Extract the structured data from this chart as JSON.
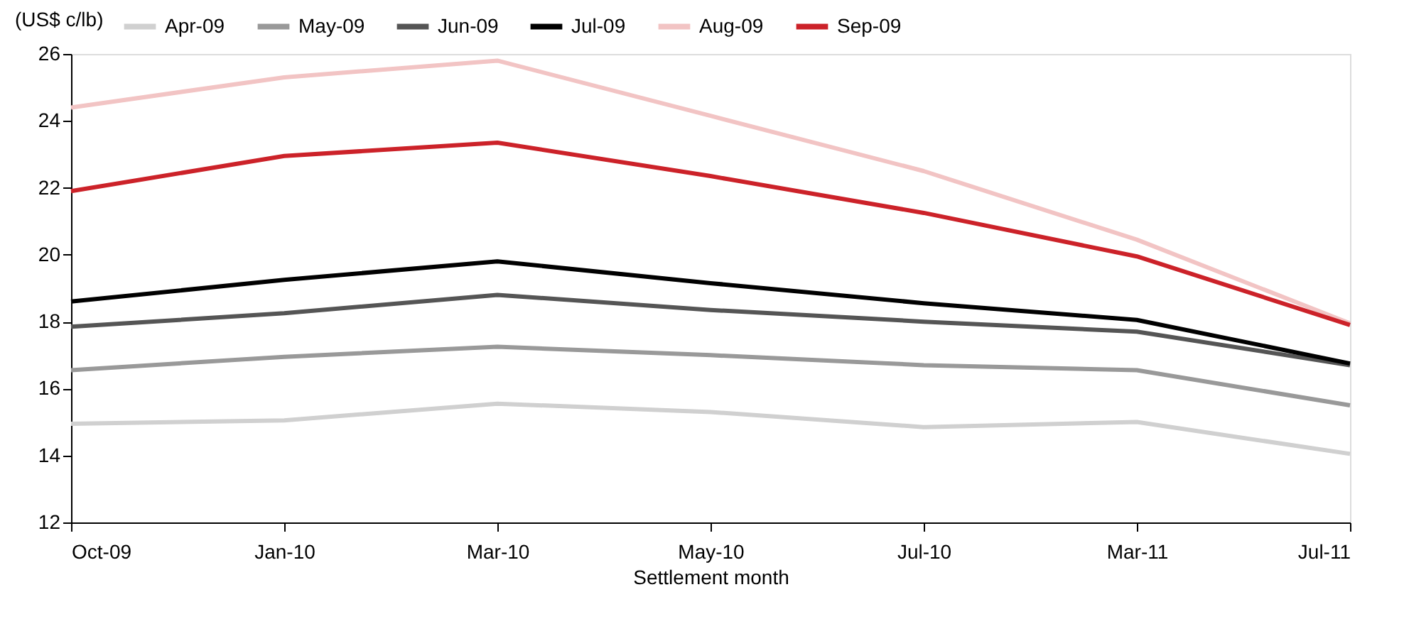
{
  "chart_data": {
    "type": "line",
    "xlabel": "Settlement month",
    "ylabel": "(US$ c/lb)",
    "categories": [
      "Oct-09",
      "Jan-10",
      "Mar-10",
      "May-10",
      "Jul-10",
      "Mar-11",
      "Jul-11"
    ],
    "series": [
      {
        "name": "Apr-09",
        "color": "#d0d0d0",
        "values": [
          14.95,
          15.05,
          15.55,
          15.3,
          14.85,
          15.0,
          14.05
        ]
      },
      {
        "name": "May-09",
        "color": "#999999",
        "values": [
          16.55,
          16.95,
          17.25,
          17.0,
          16.7,
          16.55,
          15.5
        ]
      },
      {
        "name": "Jun-09",
        "color": "#555555",
        "values": [
          17.85,
          18.25,
          18.8,
          18.35,
          18.0,
          17.7,
          16.7
        ]
      },
      {
        "name": "Jul-09",
        "color": "#000000",
        "values": [
          18.6,
          19.25,
          19.8,
          19.15,
          18.55,
          18.05,
          16.75
        ]
      },
      {
        "name": "Aug-09",
        "color": "#f2c4c4",
        "values": [
          24.4,
          25.3,
          25.8,
          24.15,
          22.5,
          20.45,
          17.95
        ]
      },
      {
        "name": "Sep-09",
        "color": "#cc2229",
        "values": [
          21.9,
          22.95,
          23.35,
          22.35,
          21.25,
          19.95,
          17.9
        ]
      }
    ],
    "ylim": [
      12,
      26
    ],
    "yticks": [
      12,
      14,
      16,
      18,
      20,
      22,
      24,
      26
    ],
    "grid": false,
    "legend": "top",
    "marker": "none",
    "line_style": "solid"
  }
}
